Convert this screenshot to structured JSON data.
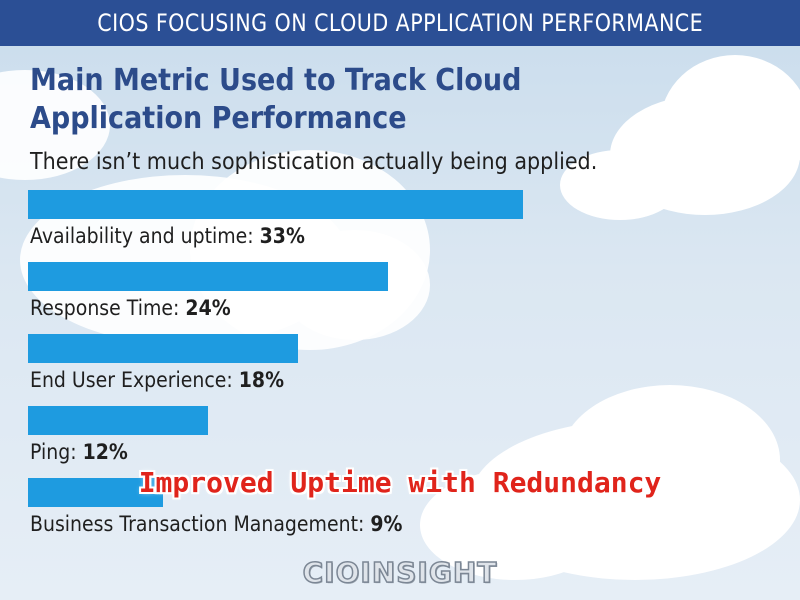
{
  "header": {
    "title": "CIOS FOCUSING ON CLOUD APPLICATION PERFORMANCE"
  },
  "overlay_caption": "Improved Uptime with Redundancy",
  "logo": {
    "text": "CIOINSIGHT"
  },
  "colors": {
    "header": "#2b4f95",
    "title": "#2c4b8a",
    "bar": "#1e9be0",
    "caption": "#e0241b"
  },
  "chart_data": {
    "type": "bar",
    "orientation": "horizontal",
    "title": "Main Metric Used to Track Cloud Application Performance",
    "subtitle": "There isn’t much sophistication actually being applied.",
    "xlabel": "",
    "ylabel": "",
    "unit": "%",
    "grid": false,
    "categories": [
      "Availability and uptime",
      "Response Time",
      "End User Experience",
      "Ping",
      "Business Transaction Management"
    ],
    "values": [
      33,
      24,
      18,
      12,
      9
    ],
    "value_labels": [
      "33%",
      "24%",
      "18%",
      "12%",
      "9%"
    ]
  }
}
